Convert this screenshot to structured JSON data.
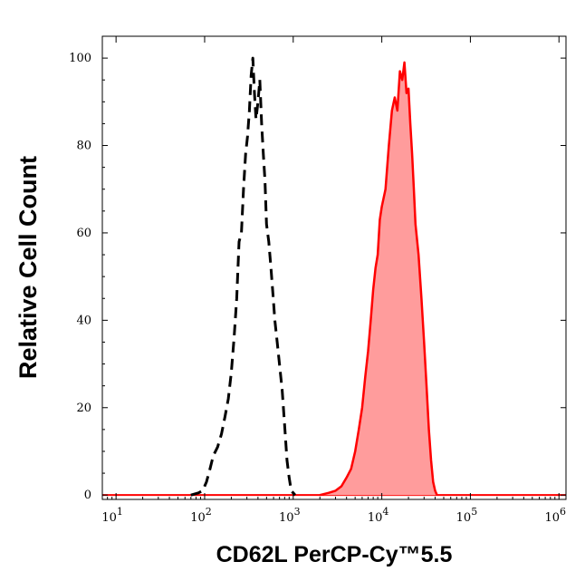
{
  "chart_data": {
    "type": "area",
    "xlabel": "CD62L PerCP-Cy™5.5",
    "ylabel": "Relative Cell Count",
    "x_scale": "log",
    "xlim": [
      7,
      1200000
    ],
    "ylim": [
      -1,
      105
    ],
    "grid": false,
    "y_ticks": [
      0,
      20,
      40,
      60,
      80,
      100
    ],
    "x_ticks": [
      {
        "value": 10,
        "base": "10",
        "exp": "1"
      },
      {
        "value": 100,
        "base": "10",
        "exp": "2"
      },
      {
        "value": 1000,
        "base": "10",
        "exp": "3"
      },
      {
        "value": 10000,
        "base": "10",
        "exp": "4"
      },
      {
        "value": 100000,
        "base": "10",
        "exp": "5"
      },
      {
        "value": 1000000,
        "base": "10",
        "exp": "6"
      }
    ],
    "series": [
      {
        "style": "dashed-line",
        "color": "#000000",
        "x": [
          70,
          85,
          95,
          105,
          115,
          125,
          140,
          155,
          170,
          185,
          200,
          215,
          230,
          245,
          260,
          275,
          290,
          305,
          320,
          335,
          350,
          365,
          380,
          400,
          420,
          440,
          460,
          480,
          500,
          530,
          560,
          590,
          620,
          660,
          700,
          750,
          800,
          850,
          900,
          950,
          1000,
          1050
        ],
        "y": [
          0,
          0.5,
          1,
          3,
          6,
          9,
          11,
          14,
          18,
          22,
          28,
          36,
          45,
          58,
          60,
          70,
          78,
          82,
          88,
          96,
          100,
          92,
          86,
          90,
          95,
          85,
          78,
          72,
          62,
          58,
          52,
          46,
          40,
          35,
          30,
          24,
          16,
          8,
          4,
          1,
          0.5,
          0
        ]
      },
      {
        "style": "filled",
        "color": "#ff0000",
        "fill": "#ff9c9c",
        "x": [
          2000,
          2500,
          3000,
          3500,
          4000,
          4500,
          5000,
          5500,
          6000,
          6500,
          7000,
          7500,
          8000,
          8500,
          9000,
          9500,
          10000,
          11000,
          12000,
          13000,
          14000,
          15000,
          16000,
          17000,
          18000,
          19000,
          20000,
          21000,
          22000,
          23000,
          24000,
          26000,
          28000,
          30000,
          32000,
          34000,
          36000,
          38000,
          40000,
          42000
        ],
        "y": [
          0,
          0.5,
          1,
          2,
          4,
          6,
          10,
          15,
          20,
          27,
          33,
          40,
          47,
          52,
          55,
          63,
          66,
          70,
          80,
          88,
          91,
          88,
          97,
          95,
          99,
          92,
          93,
          85,
          78,
          70,
          62,
          55,
          45,
          35,
          25,
          15,
          8,
          3,
          1,
          0
        ]
      }
    ]
  }
}
